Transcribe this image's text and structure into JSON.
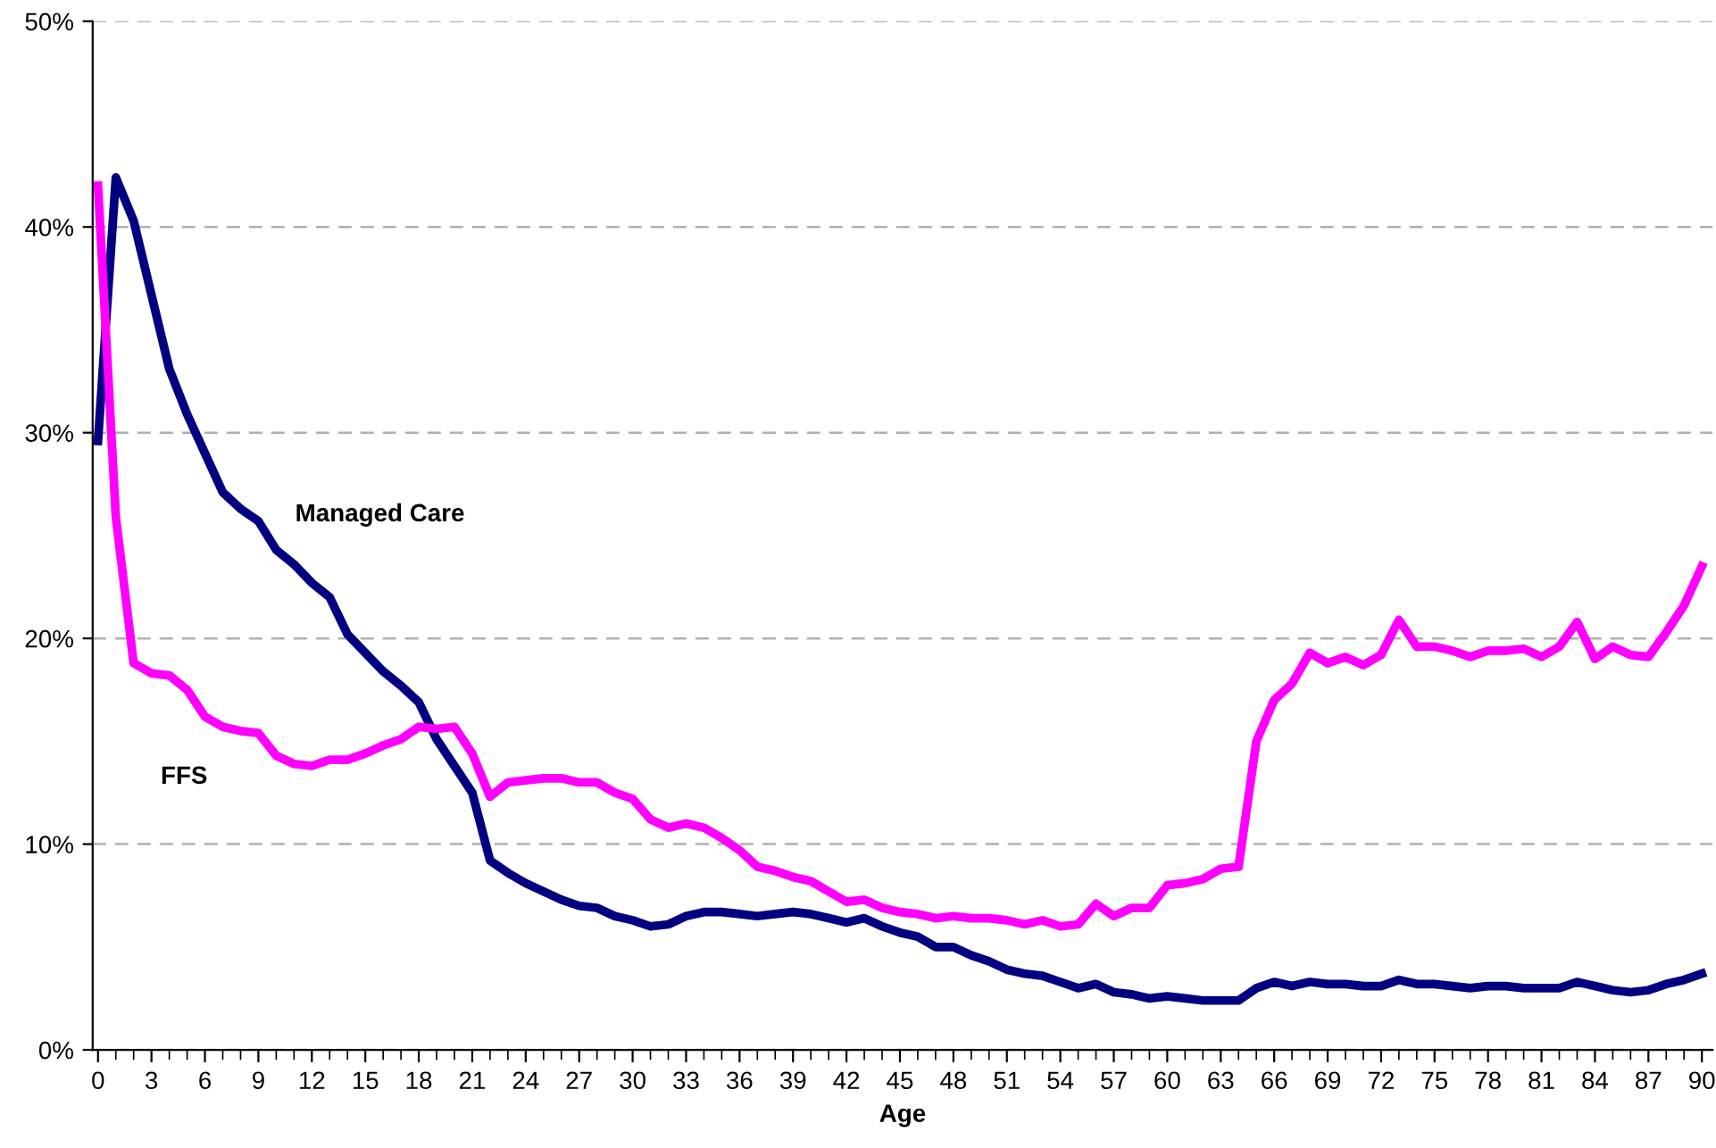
{
  "chart_data": {
    "type": "line",
    "xlabel": "Age",
    "x": [
      0,
      1,
      2,
      3,
      4,
      5,
      6,
      7,
      8,
      9,
      10,
      11,
      12,
      13,
      14,
      15,
      16,
      17,
      18,
      19,
      20,
      21,
      22,
      23,
      24,
      25,
      26,
      27,
      28,
      29,
      30,
      31,
      32,
      33,
      34,
      35,
      36,
      37,
      38,
      39,
      40,
      41,
      42,
      43,
      44,
      45,
      46,
      47,
      48,
      49,
      50,
      51,
      52,
      53,
      54,
      55,
      56,
      57,
      58,
      59,
      60,
      61,
      62,
      63,
      64,
      65,
      66,
      67,
      68,
      69,
      70,
      71,
      72,
      73,
      74,
      75,
      76,
      77,
      78,
      79,
      80,
      81,
      82,
      83,
      84,
      85,
      86,
      87,
      88,
      89,
      90
    ],
    "series": [
      {
        "name": "Managed Care",
        "color": "#000080",
        "values": [
          29.6,
          42.4,
          40.3,
          36.7,
          33.1,
          30.9,
          29.0,
          27.1,
          26.3,
          25.7,
          24.3,
          23.6,
          22.7,
          22.0,
          20.2,
          19.3,
          18.4,
          17.7,
          16.9,
          15.1,
          13.8,
          12.5,
          9.2,
          8.6,
          8.1,
          7.7,
          7.3,
          7.0,
          6.9,
          6.5,
          6.3,
          6.0,
          6.1,
          6.5,
          6.7,
          6.7,
          6.6,
          6.5,
          6.6,
          6.7,
          6.6,
          6.4,
          6.2,
          6.4,
          6.0,
          5.7,
          5.5,
          5.0,
          5.0,
          4.6,
          4.3,
          3.9,
          3.7,
          3.6,
          3.3,
          3.0,
          3.2,
          2.8,
          2.7,
          2.5,
          2.6,
          2.5,
          2.4,
          2.4,
          2.4,
          3.0,
          3.3,
          3.1,
          3.3,
          3.2,
          3.2,
          3.1,
          3.1,
          3.4,
          3.2,
          3.2,
          3.1,
          3.0,
          3.1,
          3.1,
          3.0,
          3.0,
          3.0,
          3.3,
          3.1,
          2.9,
          2.8,
          2.9,
          3.2,
          3.4,
          3.7
        ]
      },
      {
        "name": "FFS",
        "color": "#ff00ff",
        "values": [
          42.0,
          25.9,
          18.8,
          18.3,
          18.2,
          17.5,
          16.2,
          15.7,
          15.5,
          15.4,
          14.3,
          13.9,
          13.8,
          14.1,
          14.1,
          14.4,
          14.8,
          15.1,
          15.7,
          15.6,
          15.7,
          14.4,
          12.3,
          13.0,
          13.1,
          13.2,
          13.2,
          13.0,
          13.0,
          12.5,
          12.2,
          11.2,
          10.8,
          11.0,
          10.8,
          10.3,
          9.7,
          8.9,
          8.7,
          8.4,
          8.2,
          7.7,
          7.2,
          7.3,
          6.9,
          6.7,
          6.6,
          6.4,
          6.5,
          6.4,
          6.4,
          6.3,
          6.1,
          6.3,
          6.0,
          6.1,
          7.1,
          6.5,
          6.9,
          6.9,
          8.0,
          8.1,
          8.3,
          8.8,
          8.9,
          15.0,
          17.0,
          17.8,
          19.3,
          18.8,
          19.1,
          18.7,
          19.2,
          20.9,
          19.6,
          19.6,
          19.4,
          19.1,
          19.4,
          19.4,
          19.5,
          19.1,
          19.6,
          20.8,
          19.0,
          19.6,
          19.2,
          19.1,
          20.3,
          21.6,
          23.5
        ]
      }
    ],
    "xlim": [
      -0.3,
      90.6
    ],
    "xticks": [
      0,
      3,
      6,
      9,
      12,
      15,
      18,
      21,
      24,
      27,
      30,
      33,
      36,
      39,
      42,
      45,
      48,
      51,
      54,
      57,
      60,
      63,
      66,
      69,
      72,
      75,
      78,
      81,
      84,
      87,
      90
    ],
    "ylim": [
      0,
      50
    ],
    "yticks": [
      {
        "value": 0,
        "label": "0%"
      },
      {
        "value": 10,
        "label": "10%"
      },
      {
        "value": 20,
        "label": "20%"
      },
      {
        "value": 30,
        "label": "30%"
      },
      {
        "value": 40,
        "label": "40%"
      },
      {
        "value": 50,
        "label": "50%"
      }
    ],
    "grid": "y",
    "legend": false,
    "marker": "none",
    "line_style": "solid"
  }
}
